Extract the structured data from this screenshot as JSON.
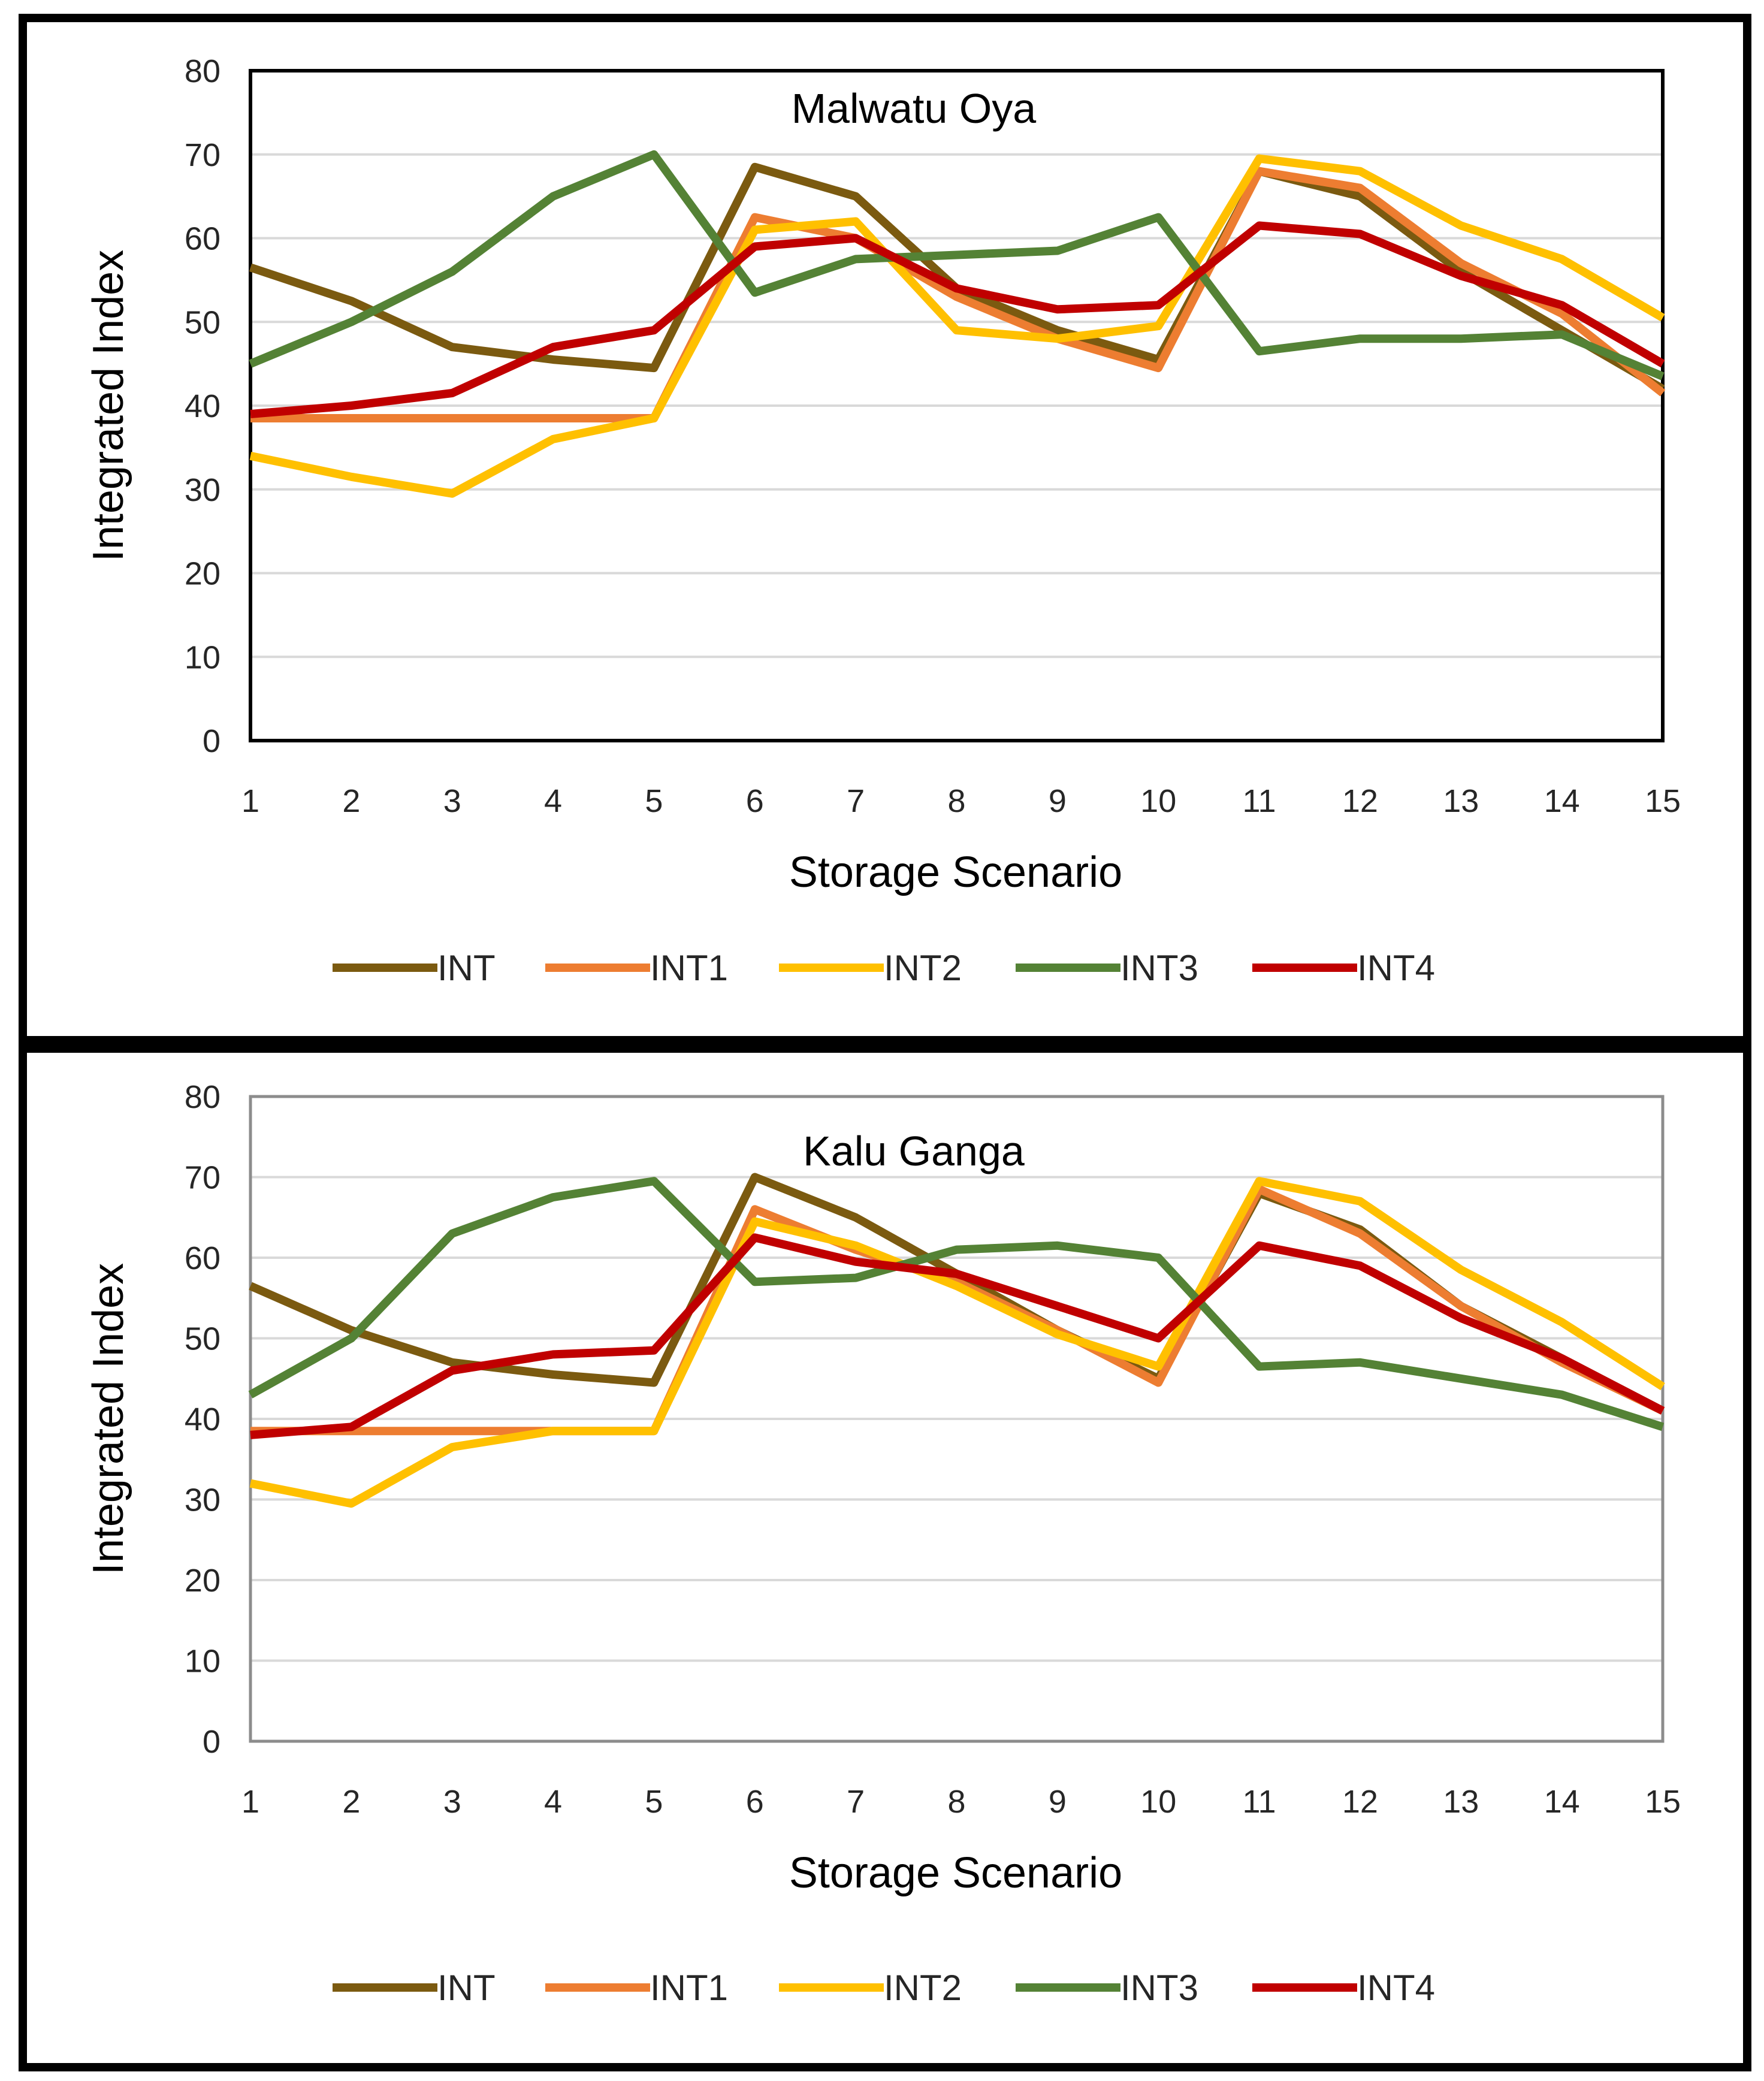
{
  "chart_data": [
    {
      "type": "line",
      "title": "Malwatu Oya",
      "xlabel": "Storage Scenario",
      "ylabel": "Integrated Index",
      "x": [
        1,
        2,
        3,
        4,
        5,
        6,
        7,
        8,
        9,
        10,
        11,
        12,
        13,
        14,
        15
      ],
      "ylim": [
        0,
        80
      ],
      "yticks": [
        0,
        10,
        20,
        30,
        40,
        50,
        60,
        70,
        80
      ],
      "grid": true,
      "legend_position": "bottom",
      "series": [
        {
          "name": "INT",
          "color": "#7b5a10",
          "values": [
            56.5,
            52.5,
            47,
            45.5,
            44.5,
            68.5,
            65,
            54,
            49,
            45.5,
            68,
            65,
            56,
            49,
            42
          ]
        },
        {
          "name": "INT1",
          "color": "#ed7d31",
          "values": [
            38.5,
            38.5,
            38.5,
            38.5,
            38.5,
            62.5,
            60,
            53,
            48,
            44.5,
            68,
            66,
            57,
            51,
            41.5
          ]
        },
        {
          "name": "INT2",
          "color": "#ffc000",
          "values": [
            34,
            31.5,
            29.5,
            36,
            38.5,
            61,
            62,
            49,
            48,
            49.5,
            69.5,
            68,
            61.5,
            57.5,
            50.5
          ]
        },
        {
          "name": "INT3",
          "color": "#548235",
          "values": [
            45,
            50,
            56,
            65,
            70,
            53.5,
            57.5,
            58,
            58.5,
            62.5,
            46.5,
            48,
            48,
            48.5,
            43.5
          ]
        },
        {
          "name": "INT4",
          "color": "#c00000",
          "values": [
            39,
            40,
            41.5,
            47,
            49,
            59,
            60,
            54,
            51.5,
            52,
            61.5,
            60.5,
            55.5,
            52,
            45
          ]
        }
      ]
    },
    {
      "type": "line",
      "title": "Kalu Ganga",
      "xlabel": "Storage Scenario",
      "ylabel": "Integrated Index",
      "x": [
        1,
        2,
        3,
        4,
        5,
        6,
        7,
        8,
        9,
        10,
        11,
        12,
        13,
        14,
        15
      ],
      "ylim": [
        0,
        80
      ],
      "yticks": [
        0,
        10,
        20,
        30,
        40,
        50,
        60,
        70,
        80
      ],
      "grid": true,
      "legend_position": "bottom",
      "series": [
        {
          "name": "INT",
          "color": "#7b5a10",
          "values": [
            56.5,
            51,
            47,
            45.5,
            44.5,
            70,
            65,
            58,
            51,
            45,
            68,
            63.5,
            54,
            47.5,
            41
          ]
        },
        {
          "name": "INT1",
          "color": "#ed7d31",
          "values": [
            38.5,
            38.5,
            38.5,
            38.5,
            38.5,
            66,
            61,
            57,
            51,
            44.5,
            68.5,
            63,
            54,
            47,
            41
          ]
        },
        {
          "name": "INT2",
          "color": "#ffc000",
          "values": [
            32,
            29.5,
            36.5,
            38.5,
            38.5,
            64.5,
            61.5,
            56.5,
            50.5,
            46.5,
            69.5,
            67,
            58.5,
            52,
            44
          ]
        },
        {
          "name": "INT3",
          "color": "#548235",
          "values": [
            43,
            50,
            63,
            67.5,
            69.5,
            57,
            57.5,
            61,
            61.5,
            60,
            46.5,
            47,
            45,
            43,
            39
          ]
        },
        {
          "name": "INT4",
          "color": "#c00000",
          "values": [
            38,
            39,
            46,
            48,
            48.5,
            62.5,
            59.5,
            58,
            54,
            50,
            61.5,
            59,
            52.5,
            47.5,
            41
          ]
        }
      ]
    }
  ]
}
